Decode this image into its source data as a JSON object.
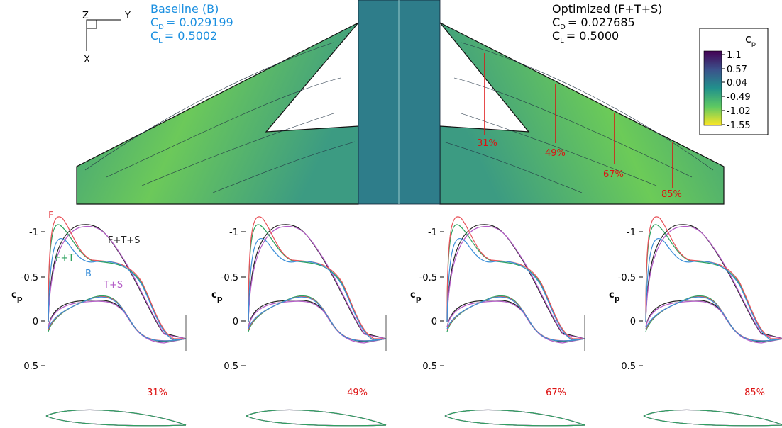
{
  "wing": {
    "axis_z": "Z",
    "axis_y": "Y",
    "axis_x": "X",
    "baseline": {
      "title": "Baseline (B)",
      "cd_symbol": "C",
      "cd_subscript": "D",
      "cd_value": "= 0.029199",
      "cl_symbol": "C",
      "cl_subscript": "L",
      "cl_value": "= 0.5002"
    },
    "optimized": {
      "title": "Optimized (F+T+S)",
      "cd_symbol": "C",
      "cd_subscript": "D",
      "cd_value": "= 0.027685",
      "cl_symbol": "C",
      "cl_subscript": "L",
      "cl_value": "= 0.5000"
    },
    "stations": [
      "31%",
      "49%",
      "67%",
      "85%"
    ]
  },
  "colorbar": {
    "title": "c",
    "title_subscript": "p",
    "labels": [
      "1.1",
      "0.57",
      "0.04",
      "-0.49",
      "-1.02",
      "-1.55"
    ]
  },
  "plots": [
    {
      "ylabel": "c",
      "ylabel_subscript": "p",
      "yticks": [
        "-1",
        "-0.5",
        "0",
        "0.5"
      ],
      "station": "31%",
      "legend": {
        "f": "F",
        "ft": "F+T",
        "b": "B",
        "ts": "T+S",
        "fts": "F+T+S"
      }
    },
    {
      "ylabel": "c",
      "ylabel_subscript": "p",
      "yticks": [
        "-1",
        "-0.5",
        "0",
        "0.5"
      ],
      "station": "49%"
    },
    {
      "ylabel": "c",
      "ylabel_subscript": "p",
      "yticks": [
        "-1",
        "-0.5",
        "0",
        "0.5"
      ],
      "station": "67%"
    },
    {
      "ylabel": "c",
      "ylabel_subscript": "p",
      "yticks": [
        "-1",
        "-0.5",
        "0",
        "0.5"
      ],
      "station": "85%"
    }
  ]
}
